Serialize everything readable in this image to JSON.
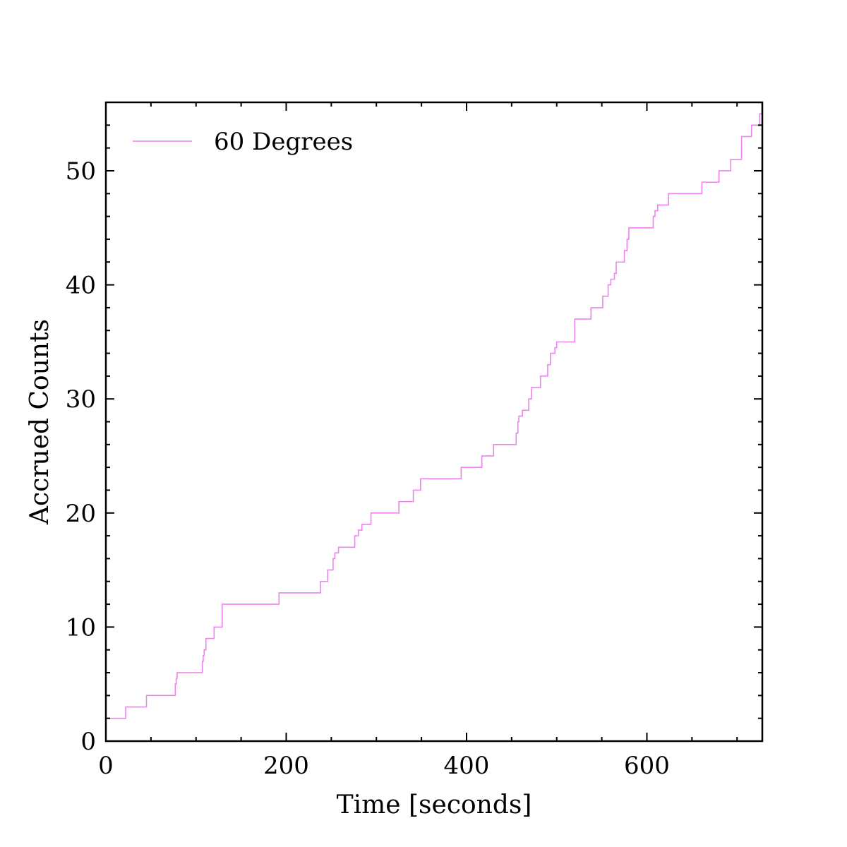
{
  "chart_data": {
    "type": "line",
    "step": true,
    "title": "",
    "xlabel": "Time [seconds]",
    "ylabel": "Accrued Counts",
    "xlim": [
      0,
      728
    ],
    "ylim": [
      0,
      56
    ],
    "xticks": [
      0,
      200,
      400,
      600
    ],
    "xtick_labels": [
      "0",
      "200",
      "400",
      "600"
    ],
    "yticks": [
      0,
      10,
      20,
      30,
      40,
      50
    ],
    "ytick_labels": [
      "0",
      "10",
      "20",
      "30",
      "40",
      "50"
    ],
    "x_minor_step": 50,
    "y_minor_step": 2,
    "grid": false,
    "legend_position": "top-left",
    "series": [
      {
        "name": "60 Degrees",
        "color": "#ee82ee",
        "x": [
          0,
          22,
          45,
          77,
          78,
          79,
          107,
          108,
          109,
          111,
          120,
          129,
          192,
          238,
          246,
          252,
          254,
          258,
          276,
          280,
          284,
          294,
          325,
          341,
          349,
          394,
          417,
          430,
          455,
          457,
          458,
          462,
          469,
          472,
          482,
          490,
          493,
          498,
          500,
          520,
          538,
          551,
          557,
          560,
          564,
          566,
          575,
          578,
          580,
          607,
          609,
          612,
          624,
          661,
          680,
          693,
          705,
          716,
          725,
          728
        ],
        "y": [
          2,
          3,
          4,
          5,
          5.5,
          6,
          7,
          7.5,
          8,
          9,
          10,
          12,
          13,
          14,
          15,
          16,
          16.5,
          17,
          18,
          18.5,
          19,
          20,
          21,
          22,
          23,
          24,
          25,
          26,
          27,
          28,
          28.5,
          29,
          30,
          31,
          32,
          33,
          34,
          34.5,
          35,
          37,
          38,
          39,
          40,
          40.5,
          41,
          42,
          43,
          44,
          45,
          46,
          46.5,
          47,
          48,
          49,
          50,
          51,
          53,
          54,
          55,
          55
        ]
      }
    ]
  }
}
